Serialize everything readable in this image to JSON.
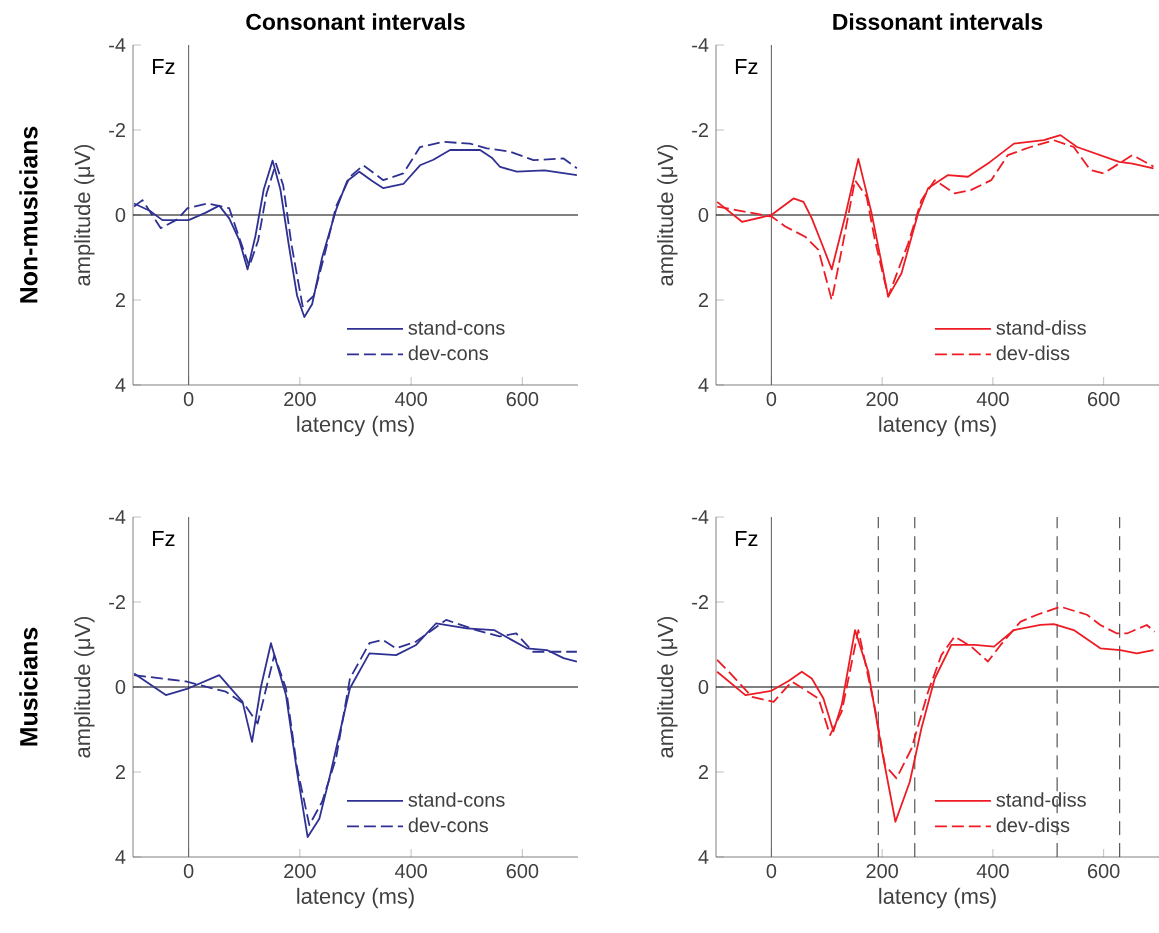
{
  "chart_data": [
    {
      "type": "line",
      "title": "Consonant intervals",
      "xlabel": "latency (ms)",
      "ylabel": "amplitude (μV)",
      "annotations": [
        "Fz",
        "Non-musicians"
      ],
      "xlim": [
        -100,
        700
      ],
      "ylim": [
        4,
        -4
      ],
      "xticks": [
        0,
        200,
        400,
        600
      ],
      "yticks": [
        -4,
        -2,
        0,
        2,
        4
      ],
      "legend": "bottom right",
      "ref_lines": [
        {
          "axis": "x",
          "value": 0,
          "color": "#595959",
          "line_style": "solid"
        },
        {
          "axis": "y",
          "value": 0,
          "color": "#000000",
          "line_style": "solid"
        }
      ],
      "series": [
        {
          "name": "stand-cons",
          "color": "#2e3192",
          "line_style": "solid",
          "x": [
            -98,
            -70,
            -47,
            -20,
            0,
            30,
            55,
            73,
            91,
            106,
            120,
            135,
            151,
            165,
            180,
            195,
            208,
            222,
            240,
            265,
            285,
            307,
            330,
            350,
            386,
            416,
            440,
            470,
            524,
            545,
            560,
            590,
            640,
            698
          ],
          "values": [
            -0.27,
            -0.1,
            0.12,
            0.12,
            0.12,
            -0.05,
            -0.22,
            0.08,
            0.59,
            1.28,
            0.5,
            -0.6,
            -1.28,
            -0.6,
            0.7,
            1.9,
            2.4,
            2.1,
            1.0,
            -0.12,
            -0.8,
            -1.02,
            -0.8,
            -0.63,
            -0.73,
            -1.17,
            -1.3,
            -1.53,
            -1.53,
            -1.35,
            -1.13,
            -1.02,
            -1.05,
            -0.94
          ]
        },
        {
          "name": "dev-cons",
          "color": "#2e3192",
          "line_style": "dashed",
          "x": [
            -98,
            -83,
            -50,
            -20,
            -2,
            34,
            73,
            90,
            109,
            125,
            140,
            157,
            170,
            185,
            205,
            225,
            245,
            265,
            290,
            314,
            350,
            386,
            416,
            458,
            506,
            536,
            578,
            620,
            674,
            698
          ],
          "values": [
            -0.2,
            -0.35,
            0.31,
            0.1,
            -0.16,
            -0.27,
            -0.16,
            0.5,
            1.21,
            0.6,
            -0.5,
            -1.21,
            -0.7,
            0.7,
            2.15,
            1.9,
            0.9,
            -0.2,
            -0.9,
            -1.17,
            -0.82,
            -0.98,
            -1.6,
            -1.72,
            -1.68,
            -1.57,
            -1.49,
            -1.29,
            -1.33,
            -1.1
          ]
        }
      ]
    },
    {
      "type": "line",
      "title": "Dissonant intervals",
      "xlabel": "latency (ms)",
      "ylabel": "amplitude (μV)",
      "annotations": [
        "Fz"
      ],
      "xlim": [
        -100,
        700
      ],
      "ylim": [
        4,
        -4
      ],
      "xticks": [
        0,
        200,
        400,
        600
      ],
      "yticks": [
        -4,
        -2,
        0,
        2,
        4
      ],
      "legend": "bottom right",
      "ref_lines": [
        {
          "axis": "x",
          "value": 0,
          "color": "#595959",
          "line_style": "solid"
        },
        {
          "axis": "y",
          "value": 0,
          "color": "#000000",
          "line_style": "solid"
        }
      ],
      "series": [
        {
          "name": "stand-diss",
          "color": "#ed1c24",
          "line_style": "solid",
          "x": [
            -98,
            -53,
            0,
            40,
            58,
            73,
            91,
            109,
            133,
            157,
            181,
            211,
            235,
            265,
            283,
            319,
            355,
            395,
            438,
            492,
            522,
            552,
            628,
            652,
            690
          ],
          "values": [
            -0.31,
            0.16,
            0,
            -0.39,
            -0.31,
            0.08,
            0.67,
            1.28,
            0.04,
            -1.32,
            -0.04,
            1.92,
            1.37,
            -0.04,
            -0.63,
            -0.94,
            -0.9,
            -1.25,
            -1.68,
            -1.76,
            -1.88,
            -1.6,
            -1.25,
            -1.21,
            -1.1
          ]
        },
        {
          "name": "dev-diss",
          "color": "#ed1c24",
          "line_style": "dashed",
          "x": [
            -98,
            1,
            25,
            61,
            85,
            109,
            127,
            151,
            172,
            187,
            211,
            247,
            271,
            295,
            331,
            361,
            397,
            427,
            468,
            510,
            546,
            576,
            600,
            652,
            690
          ],
          "values": [
            -0.2,
            0.04,
            0.27,
            0.51,
            0.82,
            2.0,
            0.82,
            -0.82,
            -0.43,
            0.59,
            1.92,
            0.67,
            -0.35,
            -0.82,
            -0.51,
            -0.59,
            -0.82,
            -1.41,
            -1.6,
            -1.76,
            -1.6,
            -1.06,
            -0.98,
            -1.41,
            -1.14
          ]
        }
      ]
    },
    {
      "type": "line",
      "xlabel": "latency (ms)",
      "ylabel": "amplitude (μV)",
      "annotations": [
        "Fz",
        "Musicians"
      ],
      "xlim": [
        -100,
        700
      ],
      "ylim": [
        4,
        -4
      ],
      "xticks": [
        0,
        200,
        400,
        600
      ],
      "yticks": [
        -4,
        -2,
        0,
        2,
        4
      ],
      "legend": "bottom right",
      "ref_lines": [
        {
          "axis": "x",
          "value": 0,
          "color": "#595959",
          "line_style": "solid"
        },
        {
          "axis": "y",
          "value": 0,
          "color": "#000000",
          "line_style": "solid"
        }
      ],
      "series": [
        {
          "name": "stand-cons",
          "color": "#2e3192",
          "line_style": "solid",
          "x": [
            -98,
            -41,
            0,
            55,
            97,
            114,
            130,
            148,
            175,
            195,
            214,
            235,
            253,
            290,
            325,
            373,
            409,
            445,
            500,
            549,
            608,
            644,
            674,
            698
          ],
          "values": [
            -0.32,
            0.19,
            0.03,
            -0.28,
            0.35,
            1.29,
            0.0,
            -1.03,
            0.19,
            2.0,
            3.53,
            3.1,
            2.15,
            0.03,
            -0.79,
            -0.75,
            -0.99,
            -1.5,
            -1.38,
            -1.34,
            -0.91,
            -0.87,
            -0.68,
            -0.6
          ]
        },
        {
          "name": "dev-cons",
          "color": "#2e3192",
          "line_style": "dashed",
          "x": [
            -98,
            -5,
            67,
            100,
            124,
            154,
            175,
            195,
            217,
            240,
            265,
            290,
            325,
            349,
            373,
            409,
            463,
            517,
            559,
            589,
            619,
            667,
            698
          ],
          "values": [
            -0.28,
            -0.13,
            0.11,
            0.4,
            0.86,
            -0.75,
            0.03,
            1.9,
            3.25,
            2.7,
            1.68,
            -0.2,
            -1.03,
            -1.11,
            -0.91,
            -1.07,
            -1.58,
            -1.34,
            -1.19,
            -1.26,
            -0.83,
            -0.83,
            -0.83
          ]
        }
      ]
    },
    {
      "type": "line",
      "xlabel": "latency (ms)",
      "ylabel": "amplitude (μV)",
      "annotations": [
        "Fz"
      ],
      "xlim": [
        -100,
        700
      ],
      "ylim": [
        4,
        -4
      ],
      "xticks": [
        0,
        200,
        400,
        600
      ],
      "yticks": [
        -4,
        -2,
        0,
        2,
        4
      ],
      "legend": "bottom right",
      "ref_lines": [
        {
          "axis": "x",
          "value": 0,
          "color": "#595959",
          "line_style": "solid"
        },
        {
          "axis": "y",
          "value": 0,
          "color": "#000000",
          "line_style": "solid"
        },
        {
          "axis": "x",
          "value": 193,
          "color": "#333333",
          "line_style": "dashed"
        },
        {
          "axis": "x",
          "value": 259,
          "color": "#333333",
          "line_style": "dashed"
        },
        {
          "axis": "x",
          "value": 516,
          "color": "#333333",
          "line_style": "dashed"
        },
        {
          "axis": "x",
          "value": 629,
          "color": "#333333",
          "line_style": "dashed"
        }
      ],
      "series": [
        {
          "name": "stand-diss",
          "color": "#ed1c24",
          "line_style": "solid",
          "x": [
            -98,
            -47,
            0,
            31,
            55,
            73,
            94,
            112,
            127,
            151,
            175,
            199,
            224,
            250,
            271,
            295,
            325,
            367,
            402,
            438,
            486,
            510,
            546,
            594,
            630,
            660,
            690
          ],
          "values": [
            -0.36,
            0.19,
            0.09,
            -0.14,
            -0.36,
            -0.2,
            0.27,
            1.04,
            0.42,
            -1.34,
            -0.36,
            1.45,
            3.17,
            2.23,
            0.97,
            -0.2,
            -0.99,
            -0.99,
            -0.95,
            -1.34,
            -1.46,
            -1.48,
            -1.34,
            -0.91,
            -0.87,
            -0.79,
            -0.87
          ]
        },
        {
          "name": "dev-diss",
          "color": "#ed1c24",
          "line_style": "dashed",
          "x": [
            -98,
            -77,
            -35,
            4,
            37,
            85,
            106,
            127,
            157,
            187,
            205,
            226,
            253,
            283,
            307,
            331,
            361,
            391,
            414,
            450,
            480,
            522,
            570,
            594,
            624,
            642,
            678,
            692
          ],
          "values": [
            -0.64,
            -0.36,
            0.23,
            0.35,
            -0.13,
            0.27,
            1.13,
            0.58,
            -1.34,
            0.5,
            1.84,
            2.15,
            1.45,
            0.11,
            -0.75,
            -1.19,
            -0.95,
            -0.6,
            -0.99,
            -1.54,
            -1.7,
            -1.89,
            -1.7,
            -1.46,
            -1.26,
            -1.26,
            -1.46,
            -1.3
          ]
        }
      ]
    }
  ]
}
